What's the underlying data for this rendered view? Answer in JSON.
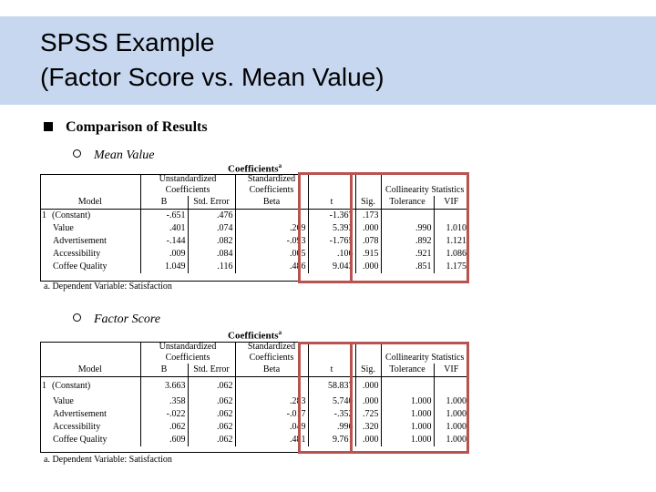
{
  "slide": {
    "title_line1": "SPSS Example",
    "title_line2": "(Factor Score vs. Mean Value)",
    "bullet": "Comparison of Results",
    "sub1": "Mean Value",
    "sub2": "Factor Score"
  },
  "table1": {
    "title": "Coefficients",
    "title_sup": "a",
    "group_unstd": "Unstandardized Coefficients",
    "group_std": "Standardized Coefficients",
    "group_coll": "Collinearity Statistics",
    "col_model": "Model",
    "col_b": "B",
    "col_se": "Std. Error",
    "col_beta": "Beta",
    "col_t": "t",
    "col_sig": "Sig.",
    "col_tol": "Tolerance",
    "col_vif": "VIF",
    "model_num": "1",
    "rows": [
      {
        "name": "(Constant)",
        "b": "-.651",
        "se": ".476",
        "beta": "",
        "t": "-1.367",
        "sig": ".173",
        "tol": "",
        "vif": ""
      },
      {
        "name": "Value",
        "b": ".401",
        "se": ".074",
        "beta": ".269",
        "t": "5.393",
        "sig": ".000",
        "tol": ".990",
        "vif": "1.010"
      },
      {
        "name": "Advertisement",
        "b": "-.144",
        "se": ".082",
        "beta": "-.093",
        "t": "-1.765",
        "sig": ".078",
        "tol": ".892",
        "vif": "1.121"
      },
      {
        "name": "Accessibility",
        "b": ".009",
        "se": ".084",
        "beta": ".005",
        "t": ".106",
        "sig": ".915",
        "tol": ".921",
        "vif": "1.086"
      },
      {
        "name": "Coffee Quality",
        "b": "1.049",
        "se": ".116",
        "beta": ".486",
        "t": "9.043",
        "sig": ".000",
        "tol": ".851",
        "vif": "1.175"
      }
    ],
    "footnote": "a. Dependent Variable: Satisfaction"
  },
  "table2": {
    "title": "Coefficients",
    "title_sup": "a",
    "group_unstd": "Unstandardized Coefficients",
    "group_std": "Standardized Coefficients",
    "group_coll": "Collinearity Statistics",
    "col_model": "Model",
    "col_b": "B",
    "col_se": "Std. Error",
    "col_beta": "Beta",
    "col_t": "t",
    "col_sig": "Sig.",
    "col_tol": "Tolerance",
    "col_vif": "VIF",
    "model_num": "1",
    "rows": [
      {
        "name": "(Constant)",
        "b": "3.663",
        "se": ".062",
        "beta": "",
        "t": "58.837",
        "sig": ".000",
        "tol": "",
        "vif": ""
      },
      {
        "name": "Value",
        "b": ".358",
        "se": ".062",
        "beta": ".283",
        "t": "5.740",
        "sig": ".000",
        "tol": "1.000",
        "vif": "1.000"
      },
      {
        "name": "Advertisement",
        "b": "-.022",
        "se": ".062",
        "beta": "-.017",
        "t": "-.352",
        "sig": ".725",
        "tol": "1.000",
        "vif": "1.000"
      },
      {
        "name": "Accessibility",
        "b": ".062",
        "se": ".062",
        "beta": ".049",
        "t": ".996",
        "sig": ".320",
        "tol": "1.000",
        "vif": "1.000"
      },
      {
        "name": "Coffee Quality",
        "b": ".609",
        "se": ".062",
        "beta": ".481",
        "t": "9.761",
        "sig": ".000",
        "tol": "1.000",
        "vif": "1.000"
      }
    ],
    "footnote": "a. Dependent Variable: Satisfaction"
  },
  "colors": {
    "title_bar": "#c6d7ef",
    "highlight": "#b85450"
  }
}
